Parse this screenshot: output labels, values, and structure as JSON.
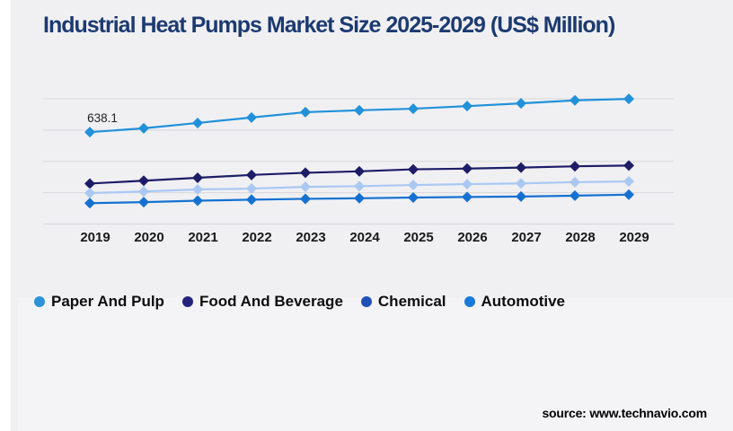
{
  "title": {
    "text": "Industrial Heat Pumps Market Size 2025-2029 (US$ Million)",
    "color": "#1c3a70"
  },
  "source": {
    "text": "source: www.technavio.com"
  },
  "colors": {
    "background": "#f0f0f3",
    "background_lower": "#f4f4f6",
    "gridline": "#d7d7db",
    "title": "#1c3a70"
  },
  "chart_data": {
    "type": "line",
    "title": "Industrial Heat Pumps Market Size 2025-2029 (US$ Million)",
    "xlabel": "",
    "ylabel": "US$ Million",
    "x": [
      2019,
      2020,
      2021,
      2022,
      2023,
      2024,
      2025,
      2026,
      2027,
      2028,
      2029
    ],
    "ylim": [
      0,
      870
    ],
    "grid": "horizontal",
    "legend_position": "bottom",
    "marker": "diamond",
    "series": [
      {
        "name": "Paper And Pulp",
        "line_color": "#2191d9",
        "legend_color": "#2a93d9",
        "values": [
          638.1,
          665,
          702,
          740,
          777,
          790,
          801,
          819,
          838,
          859,
          869
        ]
      },
      {
        "name": "Food And Beverage",
        "line_color": "#1d1c67",
        "legend_color": "#24247e",
        "values": [
          281,
          301,
          321,
          341,
          356,
          366,
          380,
          385,
          392,
          401,
          406
        ]
      },
      {
        "name": "Chemical",
        "line_color": "#aac8f2",
        "legend_color": "#1e50b8",
        "values": [
          215,
          226,
          240,
          246,
          258,
          263,
          271,
          277,
          282,
          291,
          296
        ]
      },
      {
        "name": "Automotive",
        "line_color": "#1571d1",
        "legend_color": "#1a79d8",
        "values": [
          145,
          152,
          162,
          169,
          175,
          179,
          184,
          188,
          191,
          197,
          204
        ]
      }
    ],
    "annotation": {
      "text": "638.1",
      "series": "Paper And Pulp",
      "year": 2019,
      "value": 638.1
    }
  }
}
